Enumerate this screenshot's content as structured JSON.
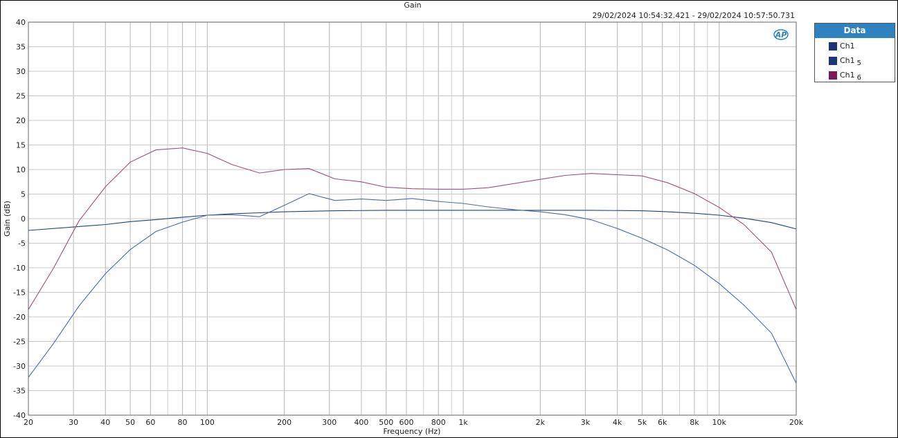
{
  "chart_data": {
    "type": "line",
    "title": "Gain",
    "subtitle": "29/02/2024 10:54:32.421 - 29/02/2024 10:57:50.731",
    "xlabel": "Frequency (Hz)",
    "ylabel": "Gain (dB)",
    "x_scale": "log",
    "xlim": [
      20,
      20000
    ],
    "ylim": [
      -40,
      40
    ],
    "grid": true,
    "legend_position": "right",
    "legend_title": "Data",
    "x_ticks": [
      20,
      30,
      40,
      50,
      60,
      80,
      100,
      200,
      300,
      400,
      500,
      600,
      800,
      1000,
      2000,
      3000,
      4000,
      5000,
      6000,
      8000,
      10000,
      20000
    ],
    "x_tick_labels": [
      "20",
      "30",
      "40",
      "50",
      "60",
      "80",
      "100",
      "200",
      "300",
      "400",
      "500",
      "600",
      "800",
      "1k",
      "2k",
      "3k",
      "4k",
      "5k",
      "6k",
      "8k",
      "10k",
      "20k"
    ],
    "y_ticks": [
      40,
      35,
      30,
      25,
      20,
      15,
      10,
      5,
      0,
      -5,
      -10,
      -15,
      -20,
      -25,
      -30,
      -35,
      -40
    ],
    "series": [
      {
        "name": "Ch1",
        "sub": "",
        "color": "#22407e",
        "x": [
          20,
          31.5,
          40,
          50,
          63,
          80,
          100,
          125,
          160,
          200,
          315,
          500,
          1000,
          2000,
          3150,
          5000,
          6300,
          8000,
          10000,
          12500,
          16000,
          20000
        ],
        "y": [
          -2.4,
          -1.6,
          -1.2,
          -0.6,
          -0.2,
          0.3,
          0.7,
          1.0,
          1.2,
          1.4,
          1.6,
          1.7,
          1.7,
          1.7,
          1.7,
          1.6,
          1.4,
          1.1,
          0.7,
          0.1,
          -0.8,
          -2.1
        ]
      },
      {
        "name": "Ch1",
        "sub": "5",
        "color": "#4d6aa6",
        "x": [
          20,
          25,
          31.5,
          40,
          50,
          63,
          80,
          100,
          125,
          160,
          200,
          250,
          315,
          400,
          500,
          630,
          800,
          1000,
          1250,
          1600,
          2000,
          2500,
          3150,
          4000,
          5000,
          6300,
          8000,
          10000,
          12500,
          16000,
          20000
        ],
        "y": [
          -32.3,
          -25.5,
          -17.8,
          -11.2,
          -6.3,
          -2.6,
          -0.7,
          0.7,
          0.8,
          0.4,
          2.7,
          5.1,
          3.7,
          4.0,
          3.7,
          4.1,
          3.5,
          3.1,
          2.4,
          1.8,
          1.4,
          0.8,
          -0.2,
          -2.0,
          -4.0,
          -6.4,
          -9.5,
          -13.2,
          -17.6,
          -23.3,
          -33.5
        ]
      },
      {
        "name": "Ch1",
        "sub": "6",
        "color": "#9a527f",
        "x": [
          20,
          25,
          31.5,
          40,
          50,
          63,
          80,
          100,
          125,
          160,
          200,
          250,
          315,
          400,
          500,
          630,
          800,
          1000,
          1250,
          2000,
          2500,
          3150,
          5000,
          6300,
          8000,
          10000,
          12500,
          16000,
          20000
        ],
        "y": [
          -18.5,
          -10.2,
          -0.5,
          6.5,
          11.5,
          14.0,
          14.4,
          13.3,
          11.0,
          9.3,
          10.0,
          10.2,
          8.1,
          7.5,
          6.4,
          6.1,
          6.0,
          6.0,
          6.3,
          8.0,
          8.8,
          9.2,
          8.7,
          7.3,
          5.1,
          2.3,
          -1.2,
          -6.8,
          -18.5
        ]
      }
    ],
    "legend_swatch_colors": [
      "#1b3577",
      "#1b3577",
      "#7b1c5c"
    ]
  },
  "logo": "AP"
}
